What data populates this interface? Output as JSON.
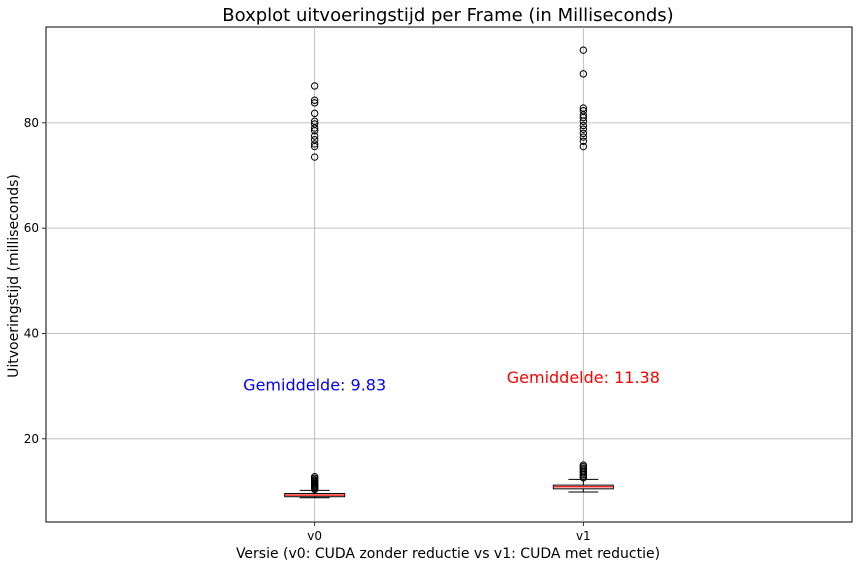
{
  "chart_data": {
    "type": "boxplot",
    "title": "Boxplot uitvoeringstijd per Frame (in Milliseconds)",
    "xlabel": "Versie (v0: CUDA zonder reductie vs v1: CUDA met reductie)",
    "ylabel": "Uitvoeringstijd (milliseconds)",
    "categories": [
      "v0",
      "v1"
    ],
    "ylim": [
      4.2,
      98.2
    ],
    "yticks": [
      20,
      40,
      60,
      80
    ],
    "grid": true,
    "series": [
      {
        "category": "v0",
        "whisker_low": 8.8,
        "q1": 9.0,
        "median": 9.3,
        "q3": 9.6,
        "whisker_high": 10.2,
        "outliers": [
          10.4,
          10.6,
          10.8,
          11.0,
          11.2,
          11.4,
          11.6,
          11.8,
          12.0,
          12.2,
          12.5,
          12.8,
          73.5,
          75.5,
          76.0,
          76.8,
          77.5,
          78.5,
          79.0,
          79.8,
          80.3,
          81.8,
          83.8,
          84.3,
          87.0
        ]
      },
      {
        "category": "v1",
        "whisker_low": 9.9,
        "q1": 10.5,
        "median": 10.9,
        "q3": 11.2,
        "whisker_high": 12.3,
        "outliers": [
          12.6,
          12.9,
          13.2,
          13.5,
          13.8,
          14.1,
          14.4,
          14.7,
          15.0,
          75.5,
          76.5,
          77.3,
          78.0,
          78.8,
          79.5,
          80.3,
          81.0,
          81.5,
          82.3,
          82.8,
          89.3,
          93.8
        ]
      }
    ],
    "annotations": [
      {
        "text": "Gemiddelde: 9.83",
        "category": "v0",
        "y": 30.3,
        "color": "#0000ff"
      },
      {
        "text": "Gemiddelde: 11.38",
        "category": "v1",
        "y": 31.7,
        "color": "#ff0000"
      }
    ],
    "colors": {
      "median": "#ff0000",
      "box": "#000000",
      "grid": "#b0b0b0"
    }
  }
}
